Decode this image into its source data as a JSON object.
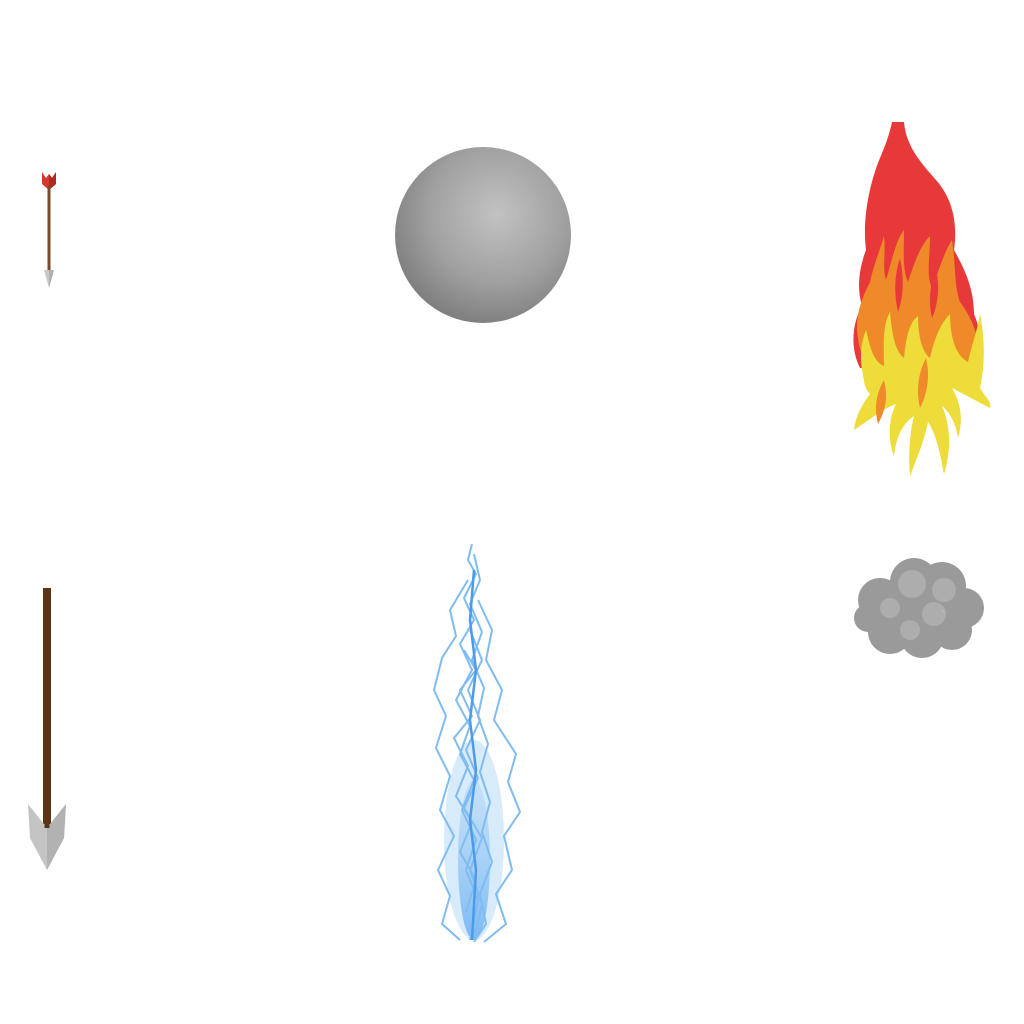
{
  "sprite_sheet": {
    "background": "#ffffff",
    "sprites": [
      {
        "name": "small-arrow",
        "icon": "arrow-icon",
        "colors": {
          "fletching": "#d23a2c",
          "shaft": "#7a4a28",
          "tip": "#c8c8c8"
        }
      },
      {
        "name": "cannonball",
        "icon": "cannonball-icon",
        "colors": {
          "highlight": "#c2c2c2",
          "base": "#9a9a9a",
          "shadow": "#7d7d7d"
        }
      },
      {
        "name": "fireball",
        "icon": "fire-icon",
        "colors": {
          "outer": "#e8393a",
          "middle": "#ef8a2a",
          "inner": "#eedc3a"
        }
      },
      {
        "name": "large-arrow",
        "icon": "arrow-icon",
        "colors": {
          "shaft": "#5a3417",
          "tip": "#c4c4c4"
        }
      },
      {
        "name": "lightning-bolt",
        "icon": "lightning-icon",
        "colors": {
          "glow": "#a9d2f7",
          "core": "#5aa6ef"
        }
      },
      {
        "name": "smoke-puff",
        "icon": "smoke-icon",
        "colors": {
          "base": "#9a9a9a",
          "light": "#b0b0b0"
        }
      }
    ]
  }
}
